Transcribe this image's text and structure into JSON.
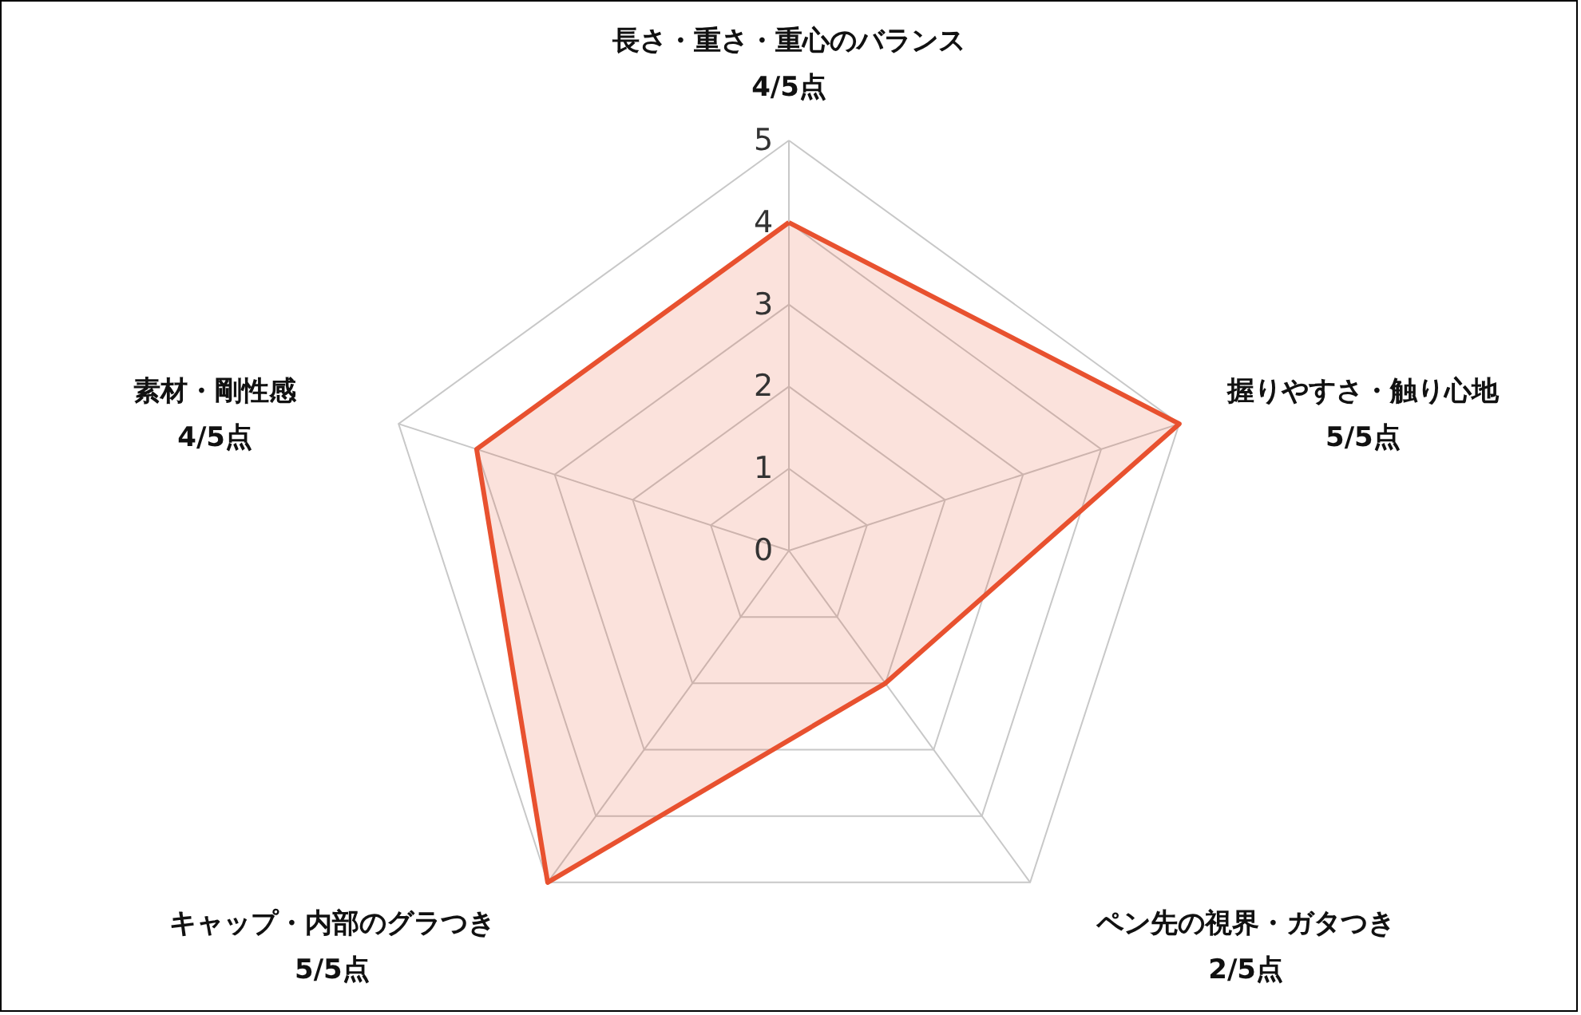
{
  "chart_data": {
    "type": "radar",
    "categories": [
      "長さ・重さ・重心のバランス\n4/5点",
      "握りやすさ・触り心地\n5/5点",
      "ペン先の視界・ガタつき\n2/5点",
      "キャップ・内部のグラつき\n5/5点",
      "素材・剛性感\n4/5点"
    ],
    "series": [
      {
        "color": "#e8512f",
        "values": [
          4,
          5,
          2,
          5,
          4
        ]
      }
    ],
    "ylim": [
      0,
      5
    ],
    "yticks": [
      0,
      1,
      2,
      3,
      4,
      5
    ],
    "grid": true
  }
}
